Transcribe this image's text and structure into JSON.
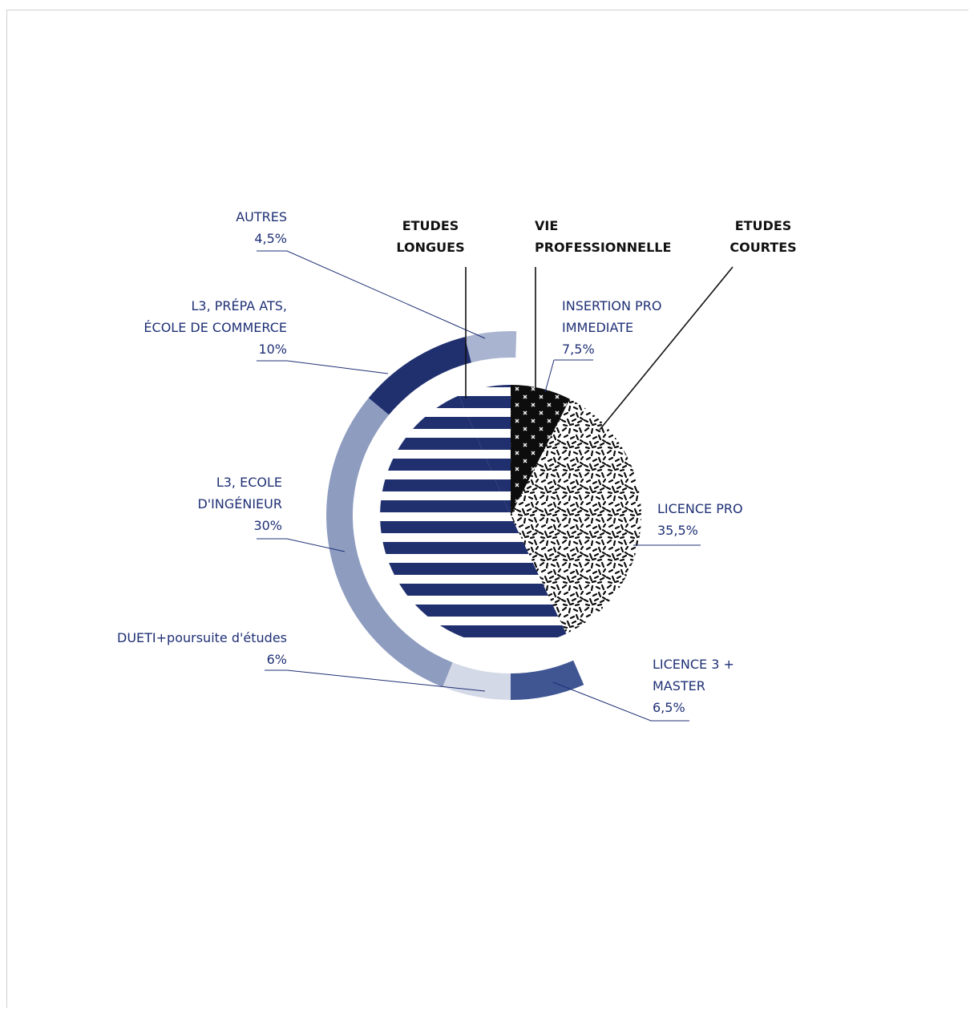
{
  "chart_data": {
    "type": "pie",
    "center_pie": [
      {
        "group": "Etudes longues",
        "value": 50.5
      },
      {
        "group": "Vie professionnelle",
        "value": 7.5
      },
      {
        "group": "Etudes courtes",
        "value": 35.5
      },
      {
        "group": "Etudes longues",
        "value": 6.5
      }
    ],
    "outer_ring": [
      {
        "name": "LICENCE 3 + MASTER",
        "value": 6.5,
        "color": "#3f5693"
      },
      {
        "name": "DUETI+poursuite d'études",
        "value": 6,
        "color": "#d4d9e7"
      },
      {
        "name": "L3, ECOLE D'INGÉNIEUR",
        "value": 30,
        "color": "#8e9cc0"
      },
      {
        "name": "L3, PRÉPA ATS, ÉCOLE DE COMMERCE",
        "value": 10,
        "color": "#20306f"
      },
      {
        "name": "AUTRES",
        "value": 4.5,
        "color": "#a9b4d0"
      }
    ],
    "categories": [
      {
        "key": "etudes_longues",
        "lines": [
          "ETUDES",
          "LONGUES"
        ]
      },
      {
        "key": "vie_pro",
        "lines": [
          "VIE",
          "PROFESSIONNELLE"
        ]
      },
      {
        "key": "etudes_courtes",
        "lines": [
          "ETUDES",
          "COURTES"
        ]
      }
    ],
    "labels": {
      "autres": [
        "AUTRES",
        "4,5%"
      ],
      "l3_prepa": [
        "L3, PRÉPA ATS,",
        "ÉCOLE DE COMMERCE",
        "10%"
      ],
      "l3_ecole": [
        "L3, ECOLE",
        "D'INGÉNIEUR",
        "30%"
      ],
      "dueti": [
        "DUETI+poursuite d'études",
        "6%"
      ],
      "insertion": [
        "INSERTION PRO",
        "IMMEDIATE",
        "7,5%"
      ],
      "licence_pro": [
        "LICENCE PRO",
        "35,5%"
      ],
      "licence3": [
        "LICENCE 3 +",
        "MASTER",
        "6,5%"
      ]
    },
    "colors": {
      "navy": "#20306f",
      "text": "#1f3075",
      "black": "#111111"
    }
  }
}
